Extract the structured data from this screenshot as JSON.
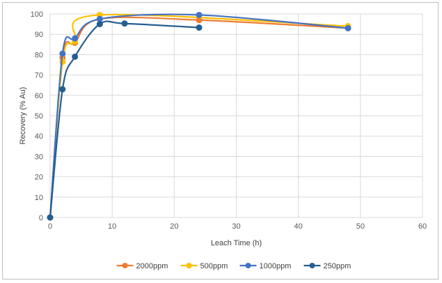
{
  "chart_data": {
    "type": "line",
    "title": "",
    "xlabel": "Leach Time (h)",
    "ylabel": "Recovery (% Au)",
    "xlim": [
      0,
      60
    ],
    "ylim": [
      0,
      100
    ],
    "x_ticks": [
      "0",
      "10",
      "20",
      "30",
      "40",
      "50",
      "60"
    ],
    "y_ticks": [
      "0",
      "10",
      "20",
      "30",
      "40",
      "50",
      "60",
      "70",
      "80",
      "90",
      "100"
    ],
    "grid": true,
    "legend_position": "bottom",
    "smooth_lines": true,
    "series": [
      {
        "name": "2000ppm",
        "color": "#ED7D31",
        "points": [
          [
            0,
            0
          ],
          [
            2,
            78.5
          ],
          [
            4,
            85.8
          ],
          [
            8,
            97.5
          ],
          [
            24,
            97.0
          ],
          [
            48,
            93.0
          ]
        ]
      },
      {
        "name": "500ppm",
        "color": "#FFC000",
        "points": [
          [
            0,
            0
          ],
          [
            2,
            76.5
          ],
          [
            4,
            86.5
          ],
          [
            8,
            99.5
          ],
          [
            48,
            94.0
          ]
        ]
      },
      {
        "name": "1000ppm",
        "color": "#4472C4",
        "points": [
          [
            0,
            0
          ],
          [
            2,
            80.5
          ],
          [
            4,
            88.0
          ],
          [
            8,
            97.5
          ],
          [
            24,
            99.5
          ],
          [
            48,
            93.0
          ]
        ]
      },
      {
        "name": "250ppm",
        "color": "#255E91",
        "points": [
          [
            0,
            0
          ],
          [
            2,
            63.0
          ],
          [
            4,
            79.0
          ],
          [
            8,
            95.0
          ],
          [
            12,
            95.3
          ],
          [
            24,
            93.3
          ]
        ]
      }
    ]
  }
}
